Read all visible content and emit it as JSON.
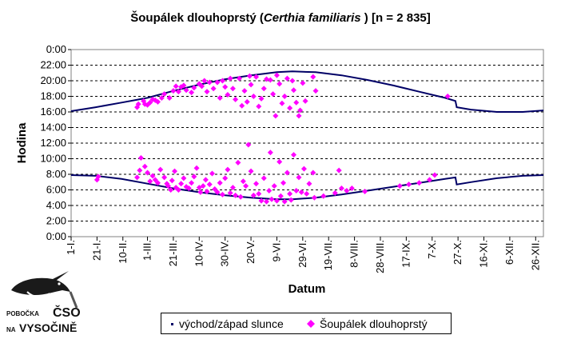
{
  "page": {
    "title_part1": "Šoupálek dlouhoprstý (",
    "title_species": "Certhia familiaris",
    "title_part2": " ) [n = 2 835]"
  },
  "logo": {
    "line1": "POBOČKA",
    "line2": "NA",
    "brand": "ČSO",
    "region": "VYSOČINĚ",
    "icon": "treecreeper-bird-icon"
  },
  "legend": {
    "sun_label": "východ/západ slunce",
    "bird_label": "Šoupálek dlouhoprstý"
  },
  "chart_data": {
    "type": "scatter",
    "title": "Šoupálek dlouhoprstý (Certhia familiaris) [n = 2 835]",
    "xlabel": "Datum",
    "ylabel": "Hodina",
    "xlim": [
      1,
      366
    ],
    "ylim": [
      0,
      24
    ],
    "y_tick_labels": [
      "0:00",
      "2:00",
      "4:00",
      "6:00",
      "8:00",
      "10:00",
      "12:00",
      "14:00",
      "16:00",
      "18:00",
      "20:00",
      "22:00",
      "0:00"
    ],
    "x_ticks": [
      {
        "day": 1,
        "label": "1-I."
      },
      {
        "day": 21,
        "label": "21-I."
      },
      {
        "day": 41,
        "label": "10-II."
      },
      {
        "day": 60,
        "label": "1-III."
      },
      {
        "day": 80,
        "label": "21-III."
      },
      {
        "day": 100,
        "label": "10-IV."
      },
      {
        "day": 120,
        "label": "30-IV."
      },
      {
        "day": 140,
        "label": "20-V."
      },
      {
        "day": 160,
        "label": "9-VI."
      },
      {
        "day": 180,
        "label": "29-VI."
      },
      {
        "day": 200,
        "label": "19-VII."
      },
      {
        "day": 220,
        "label": "8-VIII."
      },
      {
        "day": 240,
        "label": "28-VIII."
      },
      {
        "day": 260,
        "label": "17-IX."
      },
      {
        "day": 280,
        "label": "7-X."
      },
      {
        "day": 300,
        "label": "27-X."
      },
      {
        "day": 320,
        "label": "16-XI."
      },
      {
        "day": 340,
        "label": "6-XII."
      },
      {
        "day": 360,
        "label": "26-XII."
      }
    ],
    "grid": "horizontal dashed",
    "legend_position": "bottom",
    "series": [
      {
        "name": "východ/západ slunce",
        "kind": "line",
        "color": "#000066",
        "sunrise": [
          [
            1,
            7.9
          ],
          [
            20,
            7.8
          ],
          [
            40,
            7.4
          ],
          [
            60,
            6.8
          ],
          [
            80,
            6.2
          ],
          [
            100,
            5.7
          ],
          [
            120,
            5.3
          ],
          [
            140,
            5.0
          ],
          [
            160,
            4.8
          ],
          [
            172,
            4.8
          ],
          [
            190,
            5.0
          ],
          [
            210,
            5.4
          ],
          [
            230,
            5.9
          ],
          [
            250,
            6.4
          ],
          [
            270,
            6.9
          ],
          [
            290,
            7.4
          ],
          [
            298,
            7.6
          ],
          [
            299,
            6.7
          ],
          [
            310,
            7.0
          ],
          [
            330,
            7.5
          ],
          [
            350,
            7.8
          ],
          [
            366,
            7.9
          ]
        ],
        "sunset": [
          [
            1,
            16.1
          ],
          [
            20,
            16.6
          ],
          [
            40,
            17.2
          ],
          [
            60,
            17.8
          ],
          [
            80,
            18.7
          ],
          [
            100,
            19.5
          ],
          [
            120,
            20.2
          ],
          [
            140,
            20.7
          ],
          [
            160,
            21.1
          ],
          [
            172,
            21.2
          ],
          [
            190,
            21.1
          ],
          [
            210,
            20.7
          ],
          [
            230,
            20.1
          ],
          [
            250,
            19.4
          ],
          [
            270,
            18.6
          ],
          [
            290,
            17.8
          ],
          [
            298,
            17.4
          ],
          [
            299,
            16.6
          ],
          [
            310,
            16.3
          ],
          [
            330,
            16.0
          ],
          [
            350,
            16.0
          ],
          [
            366,
            16.2
          ]
        ]
      },
      {
        "name": "Šoupálek dlouhoprstý",
        "kind": "scatter",
        "color": "#ff00ff",
        "marker": "diamond",
        "points": [
          [
            21,
            7.3
          ],
          [
            22,
            7.7
          ],
          [
            52,
            7.6
          ],
          [
            54,
            8.5
          ],
          [
            55,
            10.1
          ],
          [
            58,
            9.0
          ],
          [
            60,
            8.2
          ],
          [
            62,
            7.1
          ],
          [
            64,
            7.8
          ],
          [
            66,
            7.3
          ],
          [
            68,
            6.9
          ],
          [
            70,
            8.6
          ],
          [
            73,
            7.6
          ],
          [
            75,
            6.8
          ],
          [
            76,
            6.5
          ],
          [
            78,
            6.0
          ],
          [
            79,
            7.2
          ],
          [
            81,
            8.4
          ],
          [
            82,
            6.3
          ],
          [
            84,
            6.0
          ],
          [
            86,
            6.8
          ],
          [
            88,
            7.5
          ],
          [
            90,
            6.4
          ],
          [
            92,
            6.2
          ],
          [
            94,
            6.9
          ],
          [
            96,
            7.7
          ],
          [
            98,
            8.8
          ],
          [
            100,
            6.3
          ],
          [
            101,
            5.7
          ],
          [
            103,
            6.5
          ],
          [
            105,
            7.3
          ],
          [
            106,
            5.8
          ],
          [
            108,
            6.7
          ],
          [
            110,
            8.1
          ],
          [
            112,
            6.1
          ],
          [
            114,
            5.7
          ],
          [
            116,
            6.9
          ],
          [
            118,
            5.4
          ],
          [
            120,
            7.5
          ],
          [
            122,
            8.6
          ],
          [
            124,
            5.6
          ],
          [
            126,
            6.3
          ],
          [
            128,
            5.3
          ],
          [
            130,
            9.5
          ],
          [
            132,
            5.1
          ],
          [
            134,
            7.1
          ],
          [
            136,
            6.5
          ],
          [
            138,
            11.8
          ],
          [
            140,
            8.4
          ],
          [
            142,
            5.3
          ],
          [
            144,
            6.8
          ],
          [
            146,
            5.5
          ],
          [
            148,
            4.6
          ],
          [
            150,
            7.5
          ],
          [
            152,
            4.5
          ],
          [
            154,
            5.9
          ],
          [
            155,
            10.8
          ],
          [
            156,
            4.8
          ],
          [
            158,
            6.5
          ],
          [
            160,
            4.6
          ],
          [
            162,
            9.6
          ],
          [
            163,
            5.2
          ],
          [
            165,
            6.9
          ],
          [
            166,
            4.5
          ],
          [
            168,
            8.2
          ],
          [
            170,
            5.5
          ],
          [
            171,
            4.7
          ],
          [
            173,
            10.5
          ],
          [
            175,
            5.9
          ],
          [
            177,
            7.6
          ],
          [
            179,
            5.7
          ],
          [
            181,
            8.7
          ],
          [
            183,
            5.5
          ],
          [
            185,
            6.8
          ],
          [
            188,
            8.2
          ],
          [
            189,
            5.0
          ],
          [
            196,
            5.2
          ],
          [
            205,
            5.6
          ],
          [
            208,
            8.5
          ],
          [
            210,
            6.2
          ],
          [
            214,
            5.9
          ],
          [
            218,
            6.2
          ],
          [
            228,
            5.8
          ],
          [
            255,
            6.5
          ],
          [
            262,
            6.7
          ],
          [
            270,
            6.9
          ],
          [
            278,
            7.3
          ],
          [
            282,
            7.9
          ],
          [
            52,
            16.6
          ],
          [
            53,
            17.0
          ],
          [
            57,
            17.4
          ],
          [
            58,
            17.0
          ],
          [
            60,
            16.9
          ],
          [
            62,
            17.2
          ],
          [
            64,
            17.6
          ],
          [
            66,
            17.5
          ],
          [
            68,
            17.3
          ],
          [
            71,
            17.8
          ],
          [
            73,
            18.3
          ],
          [
            77,
            17.8
          ],
          [
            80,
            18.7
          ],
          [
            82,
            19.3
          ],
          [
            84,
            18.6
          ],
          [
            86,
            19.2
          ],
          [
            88,
            19.4
          ],
          [
            90,
            18.8
          ],
          [
            94,
            18.5
          ],
          [
            96,
            19.1
          ],
          [
            100,
            19.6
          ],
          [
            102,
            19.3
          ],
          [
            104,
            20.0
          ],
          [
            106,
            18.6
          ],
          [
            108,
            19.8
          ],
          [
            111,
            19.0
          ],
          [
            114,
            19.8
          ],
          [
            116,
            17.8
          ],
          [
            118,
            20.0
          ],
          [
            120,
            19.2
          ],
          [
            122,
            18.2
          ],
          [
            124,
            20.3
          ],
          [
            126,
            19.0
          ],
          [
            128,
            17.6
          ],
          [
            131,
            20.3
          ],
          [
            133,
            16.8
          ],
          [
            135,
            18.7
          ],
          [
            137,
            17.3
          ],
          [
            139,
            20.6
          ],
          [
            140,
            19.5
          ],
          [
            142,
            18.0
          ],
          [
            144,
            20.5
          ],
          [
            146,
            16.7
          ],
          [
            148,
            17.7
          ],
          [
            150,
            19.0
          ],
          [
            152,
            20.2
          ],
          [
            155,
            20.1
          ],
          [
            157,
            18.3
          ],
          [
            159,
            15.5
          ],
          [
            160,
            20.7
          ],
          [
            162,
            19.6
          ],
          [
            164,
            17.1
          ],
          [
            166,
            18.0
          ],
          [
            168,
            20.3
          ],
          [
            170,
            16.5
          ],
          [
            172,
            20.0
          ],
          [
            173,
            18.8
          ],
          [
            175,
            17.2
          ],
          [
            177,
            15.5
          ],
          [
            178,
            16.2
          ],
          [
            180,
            19.7
          ],
          [
            182,
            17.4
          ],
          [
            188,
            20.5
          ],
          [
            190,
            18.7
          ],
          [
            292,
            18.0
          ]
        ]
      }
    ]
  }
}
